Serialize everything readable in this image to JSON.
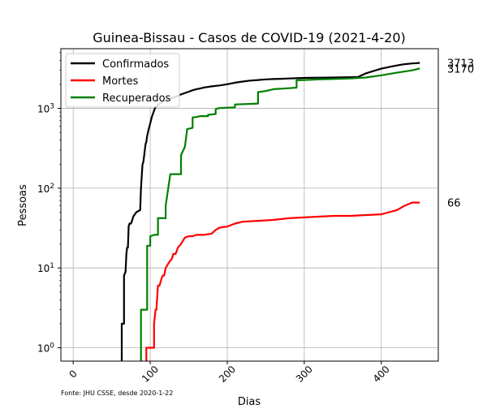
{
  "chart_data": {
    "type": "line",
    "title": "Guinea-Bissau - Casos de COVID-19 (2021-4-20)",
    "xlabel": "Dias",
    "ylabel": "Pessoas",
    "yscale": "log",
    "xlim": [
      -16,
      474
    ],
    "ylim": [
      0.68,
      5600
    ],
    "x_ticks": [
      0,
      100,
      200,
      300,
      400
    ],
    "x_tick_labels": [
      "0",
      "100",
      "200",
      "300",
      "400"
    ],
    "y_ticks": [
      1,
      10,
      100,
      1000
    ],
    "y_tick_labels": [
      "10^0",
      "10^1",
      "10^2",
      "10^3"
    ],
    "grid": true,
    "legend_position": "top-left",
    "source_note": "Fonte: JHU CSSE, desde 2020-1-22",
    "series": [
      {
        "name": "Confirmados",
        "color": "#000000",
        "end_label": "3713",
        "points": [
          [
            63,
            0.6
          ],
          [
            63,
            2
          ],
          [
            66,
            2
          ],
          [
            66,
            8
          ],
          [
            68,
            9
          ],
          [
            69,
            15
          ],
          [
            70,
            18
          ],
          [
            71,
            18
          ],
          [
            72,
            33
          ],
          [
            73,
            36
          ],
          [
            75,
            36
          ],
          [
            76,
            38
          ],
          [
            78,
            44
          ],
          [
            80,
            47
          ],
          [
            82,
            50
          ],
          [
            85,
            52
          ],
          [
            87,
            53
          ],
          [
            88,
            100
          ],
          [
            89,
            140
          ],
          [
            90,
            200
          ],
          [
            91,
            210
          ],
          [
            92,
            250
          ],
          [
            93,
            300
          ],
          [
            94,
            360
          ],
          [
            95,
            380
          ],
          [
            96,
            450
          ],
          [
            98,
            550
          ],
          [
            100,
            650
          ],
          [
            102,
            780
          ],
          [
            104,
            880
          ],
          [
            106,
            1000
          ],
          [
            110,
            1110
          ],
          [
            115,
            1190
          ],
          [
            120,
            1270
          ],
          [
            125,
            1320
          ],
          [
            130,
            1370
          ],
          [
            135,
            1420
          ],
          [
            140,
            1500
          ],
          [
            145,
            1560
          ],
          [
            150,
            1620
          ],
          [
            155,
            1690
          ],
          [
            160,
            1740
          ],
          [
            165,
            1780
          ],
          [
            170,
            1830
          ],
          [
            180,
            1890
          ],
          [
            190,
            1940
          ],
          [
            200,
            2010
          ],
          [
            210,
            2100
          ],
          [
            220,
            2170
          ],
          [
            230,
            2230
          ],
          [
            240,
            2270
          ],
          [
            250,
            2310
          ],
          [
            260,
            2330
          ],
          [
            270,
            2350
          ],
          [
            280,
            2370
          ],
          [
            290,
            2390
          ],
          [
            300,
            2410
          ],
          [
            320,
            2430
          ],
          [
            340,
            2440
          ],
          [
            360,
            2460
          ],
          [
            370,
            2480
          ],
          [
            380,
            2750
          ],
          [
            390,
            2950
          ],
          [
            400,
            3150
          ],
          [
            410,
            3300
          ],
          [
            420,
            3450
          ],
          [
            430,
            3580
          ],
          [
            440,
            3660
          ],
          [
            450,
            3713
          ]
        ]
      },
      {
        "name": "Mortes",
        "color": "#ff0000",
        "end_label": "66",
        "points": [
          [
            95,
            0.6
          ],
          [
            95,
            1
          ],
          [
            105,
            1
          ],
          [
            105,
            2
          ],
          [
            107,
            3
          ],
          [
            108,
            3
          ],
          [
            110,
            6
          ],
          [
            112,
            6
          ],
          [
            114,
            7
          ],
          [
            116,
            8
          ],
          [
            118,
            8
          ],
          [
            120,
            10
          ],
          [
            125,
            12
          ],
          [
            128,
            13
          ],
          [
            130,
            15
          ],
          [
            133,
            15
          ],
          [
            136,
            18
          ],
          [
            140,
            20
          ],
          [
            145,
            24
          ],
          [
            150,
            25
          ],
          [
            155,
            25
          ],
          [
            160,
            26
          ],
          [
            170,
            26
          ],
          [
            180,
            27
          ],
          [
            185,
            30
          ],
          [
            190,
            32
          ],
          [
            200,
            33
          ],
          [
            210,
            36
          ],
          [
            220,
            38
          ],
          [
            240,
            39
          ],
          [
            260,
            40
          ],
          [
            280,
            42
          ],
          [
            300,
            43
          ],
          [
            320,
            44
          ],
          [
            340,
            45
          ],
          [
            360,
            45
          ],
          [
            380,
            46
          ],
          [
            400,
            47
          ],
          [
            410,
            50
          ],
          [
            420,
            53
          ],
          [
            430,
            60
          ],
          [
            440,
            66
          ],
          [
            450,
            66
          ]
        ]
      },
      {
        "name": "Recuperados",
        "color": "#008000",
        "end_label": "3170",
        "points": [
          [
            88,
            0.6
          ],
          [
            88,
            3
          ],
          [
            96,
            3
          ],
          [
            96,
            19
          ],
          [
            100,
            19
          ],
          [
            100,
            25
          ],
          [
            105,
            26
          ],
          [
            110,
            26
          ],
          [
            110,
            42
          ],
          [
            120,
            42
          ],
          [
            120,
            60
          ],
          [
            126,
            150
          ],
          [
            140,
            150
          ],
          [
            140,
            260
          ],
          [
            145,
            330
          ],
          [
            148,
            550
          ],
          [
            155,
            570
          ],
          [
            155,
            770
          ],
          [
            160,
            780
          ],
          [
            165,
            800
          ],
          [
            175,
            800
          ],
          [
            175,
            830
          ],
          [
            185,
            850
          ],
          [
            185,
            980
          ],
          [
            190,
            1010
          ],
          [
            200,
            1020
          ],
          [
            210,
            1030
          ],
          [
            210,
            1120
          ],
          [
            222,
            1130
          ],
          [
            240,
            1150
          ],
          [
            240,
            1600
          ],
          [
            250,
            1650
          ],
          [
            260,
            1740
          ],
          [
            280,
            1790
          ],
          [
            290,
            1820
          ],
          [
            290,
            2250
          ],
          [
            300,
            2270
          ],
          [
            320,
            2310
          ],
          [
            340,
            2340
          ],
          [
            360,
            2370
          ],
          [
            380,
            2440
          ],
          [
            400,
            2600
          ],
          [
            420,
            2800
          ],
          [
            440,
            3000
          ],
          [
            450,
            3170
          ]
        ]
      }
    ]
  }
}
